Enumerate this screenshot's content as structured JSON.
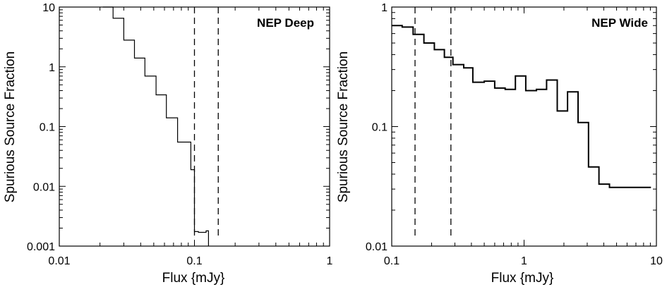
{
  "chart_data": [
    {
      "type": "line",
      "step": true,
      "title": "NEP Deep",
      "xlabel": "Flux  {mJy}",
      "ylabel": "Spurious Source Fraction",
      "xscale": "log",
      "yscale": "log",
      "xlim": [
        0.01,
        1
      ],
      "ylim": [
        0.001,
        10
      ],
      "xticks": [
        "0.01",
        "0.1",
        "1"
      ],
      "yticks": [
        "0.001",
        "0.01",
        "0.1",
        "1",
        "10"
      ],
      "title_position": "top-right",
      "grid": false,
      "series": [
        {
          "x": [
            0.021,
            0.025,
            0.03,
            0.036,
            0.043,
            0.052,
            0.062,
            0.075,
            0.094,
            0.1,
            0.107,
            0.122
          ],
          "y": [
            10,
            6.5,
            2.8,
            1.4,
            0.7,
            0.34,
            0.14,
            0.055,
            0.019,
            0.00175,
            0.0017,
            0.0018
          ]
        }
      ],
      "vlines": [
        0.1,
        0.15
      ]
    },
    {
      "type": "line",
      "step": true,
      "title": "NEP Wide",
      "xlabel": "Flux  {mJy}",
      "ylabel": "Spurious Source Fraction",
      "xscale": "log",
      "yscale": "log",
      "xlim": [
        0.1,
        10
      ],
      "ylim": [
        0.01,
        1
      ],
      "xticks": [
        "0.1",
        "1",
        "10"
      ],
      "yticks": [
        "0.01",
        "0.1",
        "1"
      ],
      "title_position": "top-right",
      "grid": false,
      "series": [
        {
          "x": [
            0.1,
            0.12,
            0.145,
            0.175,
            0.21,
            0.25,
            0.29,
            0.35,
            0.41,
            0.5,
            0.6,
            0.72,
            0.86,
            1.03,
            1.24,
            1.48,
            1.78,
            2.13,
            2.56,
            3.07,
            3.68,
            4.42,
            9.1
          ],
          "y": [
            0.7,
            0.68,
            0.59,
            0.5,
            0.44,
            0.38,
            0.33,
            0.31,
            0.235,
            0.24,
            0.21,
            0.205,
            0.265,
            0.2,
            0.205,
            0.245,
            0.135,
            0.195,
            0.108,
            0.046,
            0.033,
            0.031,
            0.031
          ]
        }
      ],
      "vlines": [
        0.15,
        0.28
      ]
    }
  ]
}
